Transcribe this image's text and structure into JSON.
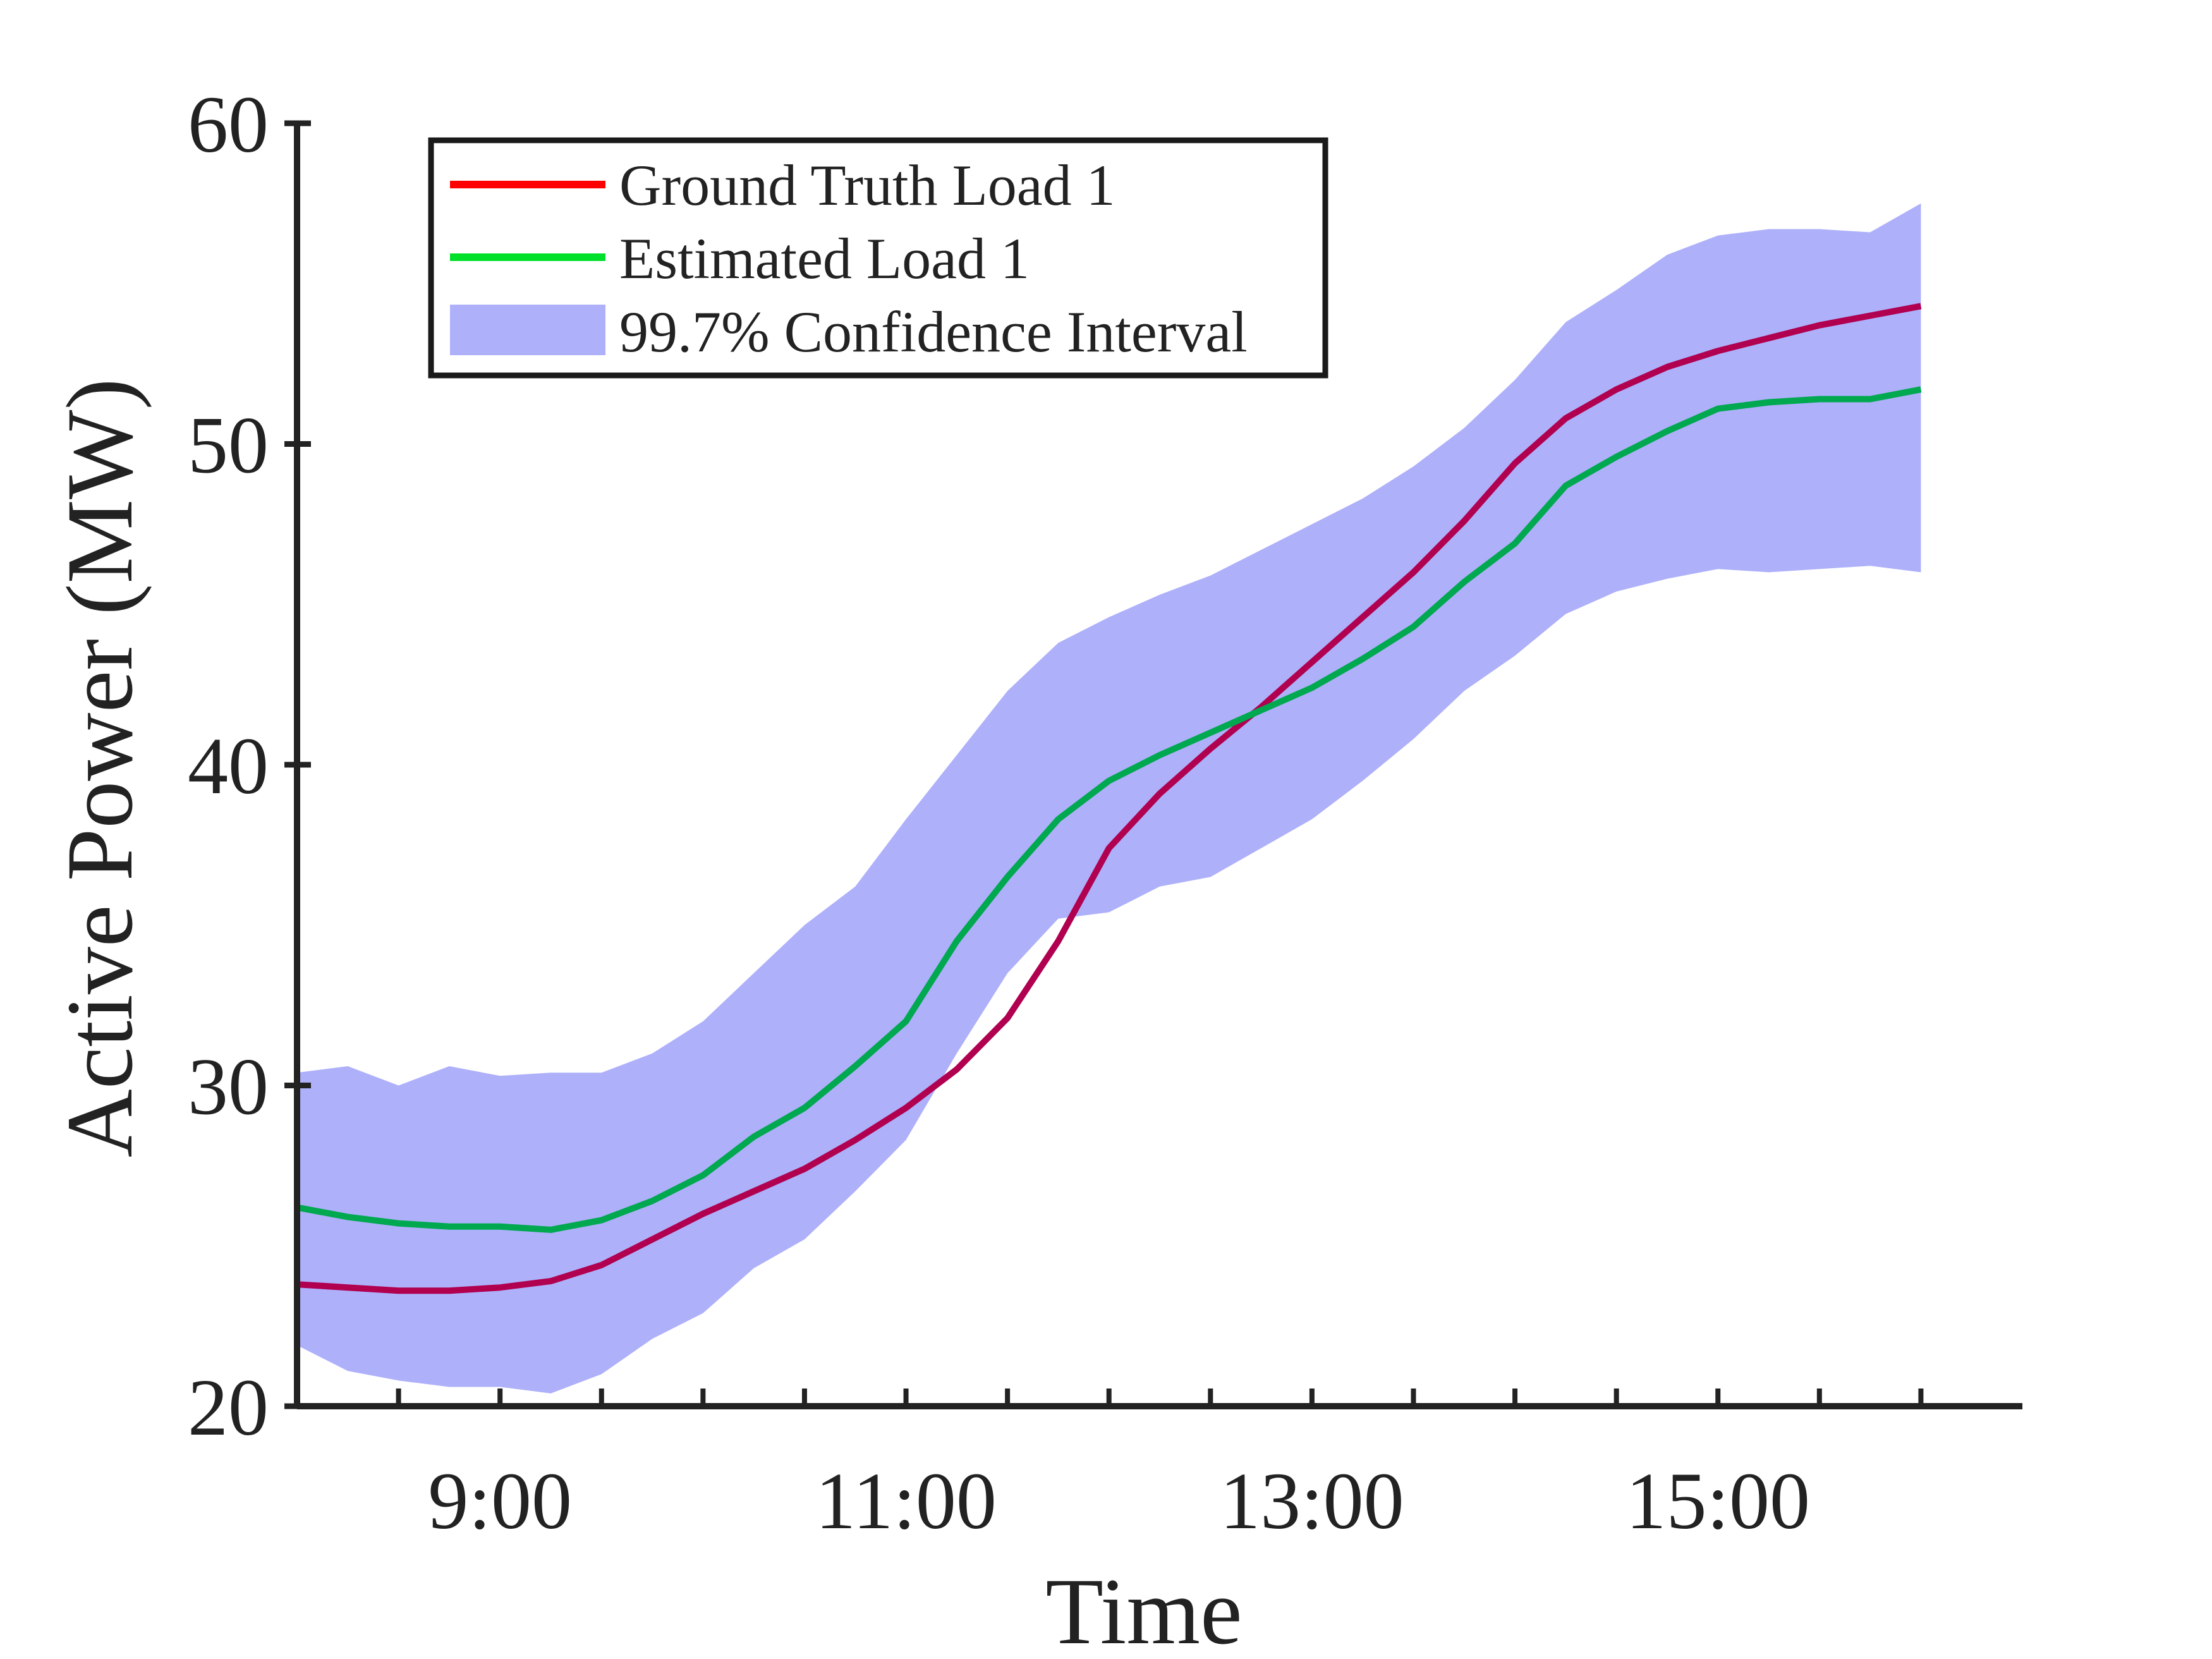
{
  "chart_data": {
    "type": "line",
    "xlabel": "Time",
    "ylabel": "Active Power (MW)",
    "xlim": [
      "8:00",
      "16:30"
    ],
    "ylim": [
      20,
      60
    ],
    "x_ticks": [
      "9:00",
      "11:00",
      "13:00",
      "15:00"
    ],
    "y_ticks": [
      20,
      30,
      40,
      50,
      60
    ],
    "grid": false,
    "legend_position": "top-left",
    "x": [
      "8:00",
      "8:15",
      "8:30",
      "8:45",
      "9:00",
      "9:15",
      "9:30",
      "9:45",
      "10:00",
      "10:15",
      "10:30",
      "10:45",
      "11:00",
      "11:15",
      "11:30",
      "11:45",
      "12:00",
      "12:15",
      "12:30",
      "12:45",
      "13:00",
      "13:15",
      "13:30",
      "13:45",
      "14:00",
      "14:15",
      "14:30",
      "14:45",
      "15:00",
      "15:15",
      "15:30",
      "15:45",
      "16:00"
    ],
    "series": [
      {
        "name": "Ground Truth Load 1",
        "color": "#b0004f",
        "legend_color": "#ff0000",
        "values": [
          23.8,
          23.7,
          23.6,
          23.6,
          23.7,
          23.9,
          24.4,
          25.2,
          26.0,
          26.7,
          27.4,
          28.3,
          29.3,
          30.5,
          32.1,
          34.5,
          37.4,
          39.1,
          40.5,
          41.8,
          43.2,
          44.6,
          46.0,
          47.6,
          49.4,
          50.8,
          51.7,
          52.4,
          52.9,
          53.3,
          53.7,
          54.0,
          54.3
        ]
      },
      {
        "name": "Estimated Load 1",
        "color": "#00a850",
        "legend_color": "#00e02a",
        "values": [
          26.2,
          25.9,
          25.7,
          25.6,
          25.6,
          25.5,
          25.8,
          26.4,
          27.2,
          28.4,
          29.3,
          30.6,
          32.0,
          34.5,
          36.5,
          38.3,
          39.5,
          40.3,
          41.0,
          41.7,
          42.4,
          43.3,
          44.3,
          45.7,
          46.9,
          48.7,
          49.6,
          50.4,
          51.1,
          51.3,
          51.4,
          51.4,
          51.7
        ]
      },
      {
        "name": "99.7% Confidence Interval",
        "color": "#aeb0fa",
        "upper": [
          30.4,
          30.6,
          30.0,
          30.6,
          30.3,
          30.4,
          30.4,
          31.0,
          32.0,
          33.5,
          35.0,
          36.2,
          38.3,
          40.3,
          42.3,
          43.8,
          44.6,
          45.3,
          45.9,
          46.7,
          47.5,
          48.3,
          49.3,
          50.5,
          52.0,
          53.8,
          54.8,
          55.9,
          56.5,
          56.7,
          56.7,
          56.6,
          57.5
        ],
        "lower": [
          21.9,
          21.1,
          20.8,
          20.6,
          20.6,
          20.4,
          21.0,
          22.1,
          22.9,
          24.3,
          25.2,
          26.7,
          28.3,
          31.0,
          33.5,
          35.2,
          35.4,
          36.2,
          36.5,
          37.4,
          38.3,
          39.5,
          40.8,
          42.3,
          43.4,
          44.7,
          45.4,
          45.8,
          46.1,
          46.0,
          46.1,
          46.2,
          46.0
        ]
      }
    ]
  },
  "axis_color": "#222222"
}
